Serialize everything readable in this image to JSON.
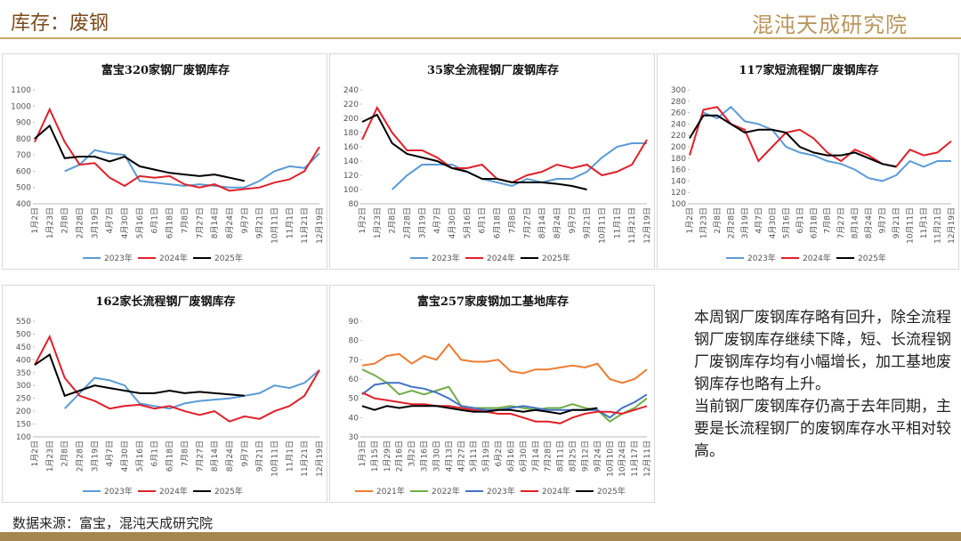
{
  "header": {
    "title": "库存：废钢",
    "logo": "混沌天成研究院"
  },
  "chart_data": [
    {
      "type": "line",
      "title": "富宝320家钢厂废钢库存",
      "categories": [
        "1月2日",
        "1月23日",
        "2月8日",
        "2月28日",
        "3月19日",
        "4月7日",
        "4月30日",
        "5月16日",
        "6月1日",
        "6月18日",
        "7月8日",
        "7月27日",
        "8月14日",
        "8月24日",
        "9月7日",
        "9月21日",
        "10月11日",
        "11月1日",
        "11月21日",
        "12月19日"
      ],
      "ylim": [
        400,
        1100
      ],
      "yticks": [
        400,
        500,
        600,
        700,
        800,
        900,
        1000,
        1100
      ],
      "series": [
        {
          "name": "2023年",
          "color": "#5b9bd5",
          "values": [
            null,
            null,
            600,
            640,
            730,
            710,
            700,
            540,
            530,
            520,
            510,
            520,
            510,
            500,
            500,
            540,
            600,
            630,
            620,
            710
          ]
        },
        {
          "name": "2024年",
          "color": "#e0202a",
          "values": [
            780,
            980,
            780,
            640,
            650,
            560,
            510,
            570,
            560,
            570,
            520,
            500,
            520,
            480,
            490,
            500,
            530,
            550,
            600,
            750
          ]
        },
        {
          "name": "2025年",
          "color": "#000000",
          "values": [
            800,
            880,
            680,
            690,
            690,
            660,
            690,
            630,
            610,
            590,
            580,
            570,
            580,
            560,
            540,
            null,
            null,
            null,
            null,
            null
          ]
        }
      ]
    },
    {
      "type": "line",
      "title": "35家全流程钢厂废钢库存",
      "categories": [
        "1月2日",
        "1月23日",
        "2月8日",
        "2月28日",
        "3月19日",
        "4月7日",
        "4月30日",
        "5月16日",
        "6月1日",
        "6月18日",
        "7月8日",
        "7月27日",
        "8月14日",
        "8月24日",
        "9月7日",
        "9月21日",
        "10月11日",
        "11月1日",
        "11月21日",
        "12月19日"
      ],
      "ylim": [
        80,
        240
      ],
      "yticks": [
        80,
        100,
        120,
        140,
        160,
        180,
        200,
        220,
        240
      ],
      "series": [
        {
          "name": "2023年",
          "color": "#5b9bd5",
          "values": [
            null,
            null,
            100,
            120,
            135,
            135,
            135,
            125,
            115,
            110,
            105,
            115,
            110,
            115,
            115,
            125,
            145,
            160,
            165,
            165
          ]
        },
        {
          "name": "2024年",
          "color": "#e0202a",
          "values": [
            170,
            215,
            180,
            155,
            155,
            145,
            130,
            130,
            135,
            115,
            110,
            120,
            125,
            135,
            130,
            135,
            120,
            125,
            135,
            170
          ]
        },
        {
          "name": "2025年",
          "color": "#000000",
          "values": [
            195,
            205,
            165,
            150,
            145,
            140,
            130,
            125,
            115,
            115,
            110,
            110,
            110,
            108,
            105,
            100,
            null,
            null,
            null,
            null
          ]
        }
      ]
    },
    {
      "type": "line",
      "title": "117家短流程钢厂废钢库存",
      "categories": [
        "1月2日",
        "1月23日",
        "2月8日",
        "2月28日",
        "3月19日",
        "4月7日",
        "4月30日",
        "5月16日",
        "6月1日",
        "6月18日",
        "7月8日",
        "7月27日",
        "8月14日",
        "8月24日",
        "9月7日",
        "9月21日",
        "10月11日",
        "11月1日",
        "11月21日",
        "12月19日"
      ],
      "ylim": [
        100,
        300
      ],
      "yticks": [
        100,
        120,
        140,
        160,
        180,
        200,
        220,
        240,
        260,
        280,
        300
      ],
      "series": [
        {
          "name": "2023年",
          "color": "#5b9bd5",
          "values": [
            null,
            260,
            250,
            270,
            245,
            240,
            230,
            200,
            190,
            185,
            175,
            170,
            160,
            145,
            140,
            150,
            175,
            165,
            175,
            175
          ]
        },
        {
          "name": "2024年",
          "color": "#e0202a",
          "values": [
            185,
            265,
            270,
            240,
            230,
            175,
            200,
            225,
            230,
            215,
            190,
            175,
            195,
            185,
            170,
            165,
            195,
            185,
            190,
            210
          ]
        },
        {
          "name": "2025年",
          "color": "#000000",
          "values": [
            215,
            255,
            255,
            240,
            225,
            230,
            230,
            225,
            200,
            190,
            185,
            185,
            190,
            180,
            170,
            165,
            null,
            null,
            null,
            null
          ]
        }
      ]
    },
    {
      "type": "line",
      "title": "162家长流程钢厂废钢库存",
      "categories": [
        "1月2日",
        "1月23日",
        "2月8日",
        "2月28日",
        "3月19日",
        "4月7日",
        "4月30日",
        "5月16日",
        "6月1日",
        "6月18日",
        "7月8日",
        "7月27日",
        "8月14日",
        "8月24日",
        "9月7日",
        "9月21日",
        "10月11日",
        "11月1日",
        "11月21日",
        "12月19日"
      ],
      "ylim": [
        100,
        550
      ],
      "yticks": [
        100,
        150,
        200,
        250,
        300,
        350,
        400,
        450,
        500,
        550
      ],
      "series": [
        {
          "name": "2023年",
          "color": "#5b9bd5",
          "values": [
            null,
            null,
            210,
            270,
            330,
            320,
            300,
            230,
            220,
            210,
            230,
            240,
            245,
            250,
            260,
            270,
            300,
            290,
            310,
            360
          ]
        },
        {
          "name": "2024年",
          "color": "#e0202a",
          "values": [
            380,
            490,
            330,
            260,
            240,
            210,
            220,
            225,
            210,
            220,
            200,
            185,
            200,
            160,
            180,
            170,
            200,
            220,
            260,
            360
          ]
        },
        {
          "name": "2025年",
          "color": "#000000",
          "values": [
            380,
            420,
            260,
            280,
            300,
            290,
            280,
            270,
            270,
            280,
            270,
            275,
            270,
            265,
            260,
            null,
            null,
            null,
            null,
            null
          ]
        }
      ]
    },
    {
      "type": "line",
      "title": "富宝257家废钢加工基地库存",
      "categories": [
        "1月3日",
        "1月15日",
        "1月29日",
        "2月16日",
        "3月2日",
        "3月16日",
        "3月30日",
        "4月13日",
        "4月27日",
        "5月11日",
        "5月19日",
        "6月2日",
        "6月16日",
        "6月30日",
        "7月14日",
        "7月28日",
        "8月11日",
        "8月25日",
        "9月12日",
        "9月24日",
        "10月10日",
        "10月24日",
        "11月17日",
        "12月11日"
      ],
      "ylim": [
        30,
        90
      ],
      "yticks": [
        30,
        40,
        50,
        60,
        70,
        80,
        90
      ],
      "series": [
        {
          "name": "2021年",
          "color": "#ed7d31",
          "values": [
            67,
            68,
            72,
            73,
            68,
            72,
            70,
            78,
            70,
            69,
            69,
            70,
            64,
            63,
            65,
            65,
            66,
            67,
            66,
            68,
            60,
            58,
            60,
            65
          ]
        },
        {
          "name": "2022年",
          "color": "#70ad47",
          "values": [
            65,
            62,
            58,
            52,
            54,
            52,
            54,
            56,
            46,
            45,
            45,
            45,
            46,
            45,
            44,
            45,
            45,
            47,
            45,
            44,
            38,
            42,
            45,
            50
          ]
        },
        {
          "name": "2023年",
          "color": "#4472c4",
          "values": [
            52,
            57,
            58,
            58,
            56,
            55,
            53,
            50,
            46,
            45,
            44,
            44,
            45,
            46,
            45,
            44,
            44,
            44,
            44,
            44,
            40,
            45,
            48,
            52
          ]
        },
        {
          "name": "2024年",
          "color": "#e0202a",
          "values": [
            53,
            50,
            49,
            48,
            47,
            47,
            46,
            46,
            45,
            44,
            43,
            42,
            42,
            40,
            38,
            38,
            37,
            40,
            42,
            43,
            43,
            42,
            44,
            46
          ]
        },
        {
          "name": "2025年",
          "color": "#000000",
          "values": [
            46,
            44,
            46,
            45,
            46,
            46,
            46,
            45,
            44,
            43,
            43,
            44,
            44,
            43,
            44,
            43,
            42,
            44,
            44,
            45,
            null,
            null,
            null,
            null
          ]
        }
      ]
    }
  ],
  "text": {
    "paragraphs": [
      "本周钢厂废钢库存略有回升，除全流程钢厂废钢库存继续下降，短、长流程钢厂废钢库存均有小幅增长，加工基地废钢库存也略有上升。",
      "当前钢厂废钢库存仍高于去年同期，主要是长流程钢厂的废钢库存水平相对较高。"
    ]
  },
  "footer": {
    "source": "数据来源：富宝，混沌天成研究院"
  }
}
